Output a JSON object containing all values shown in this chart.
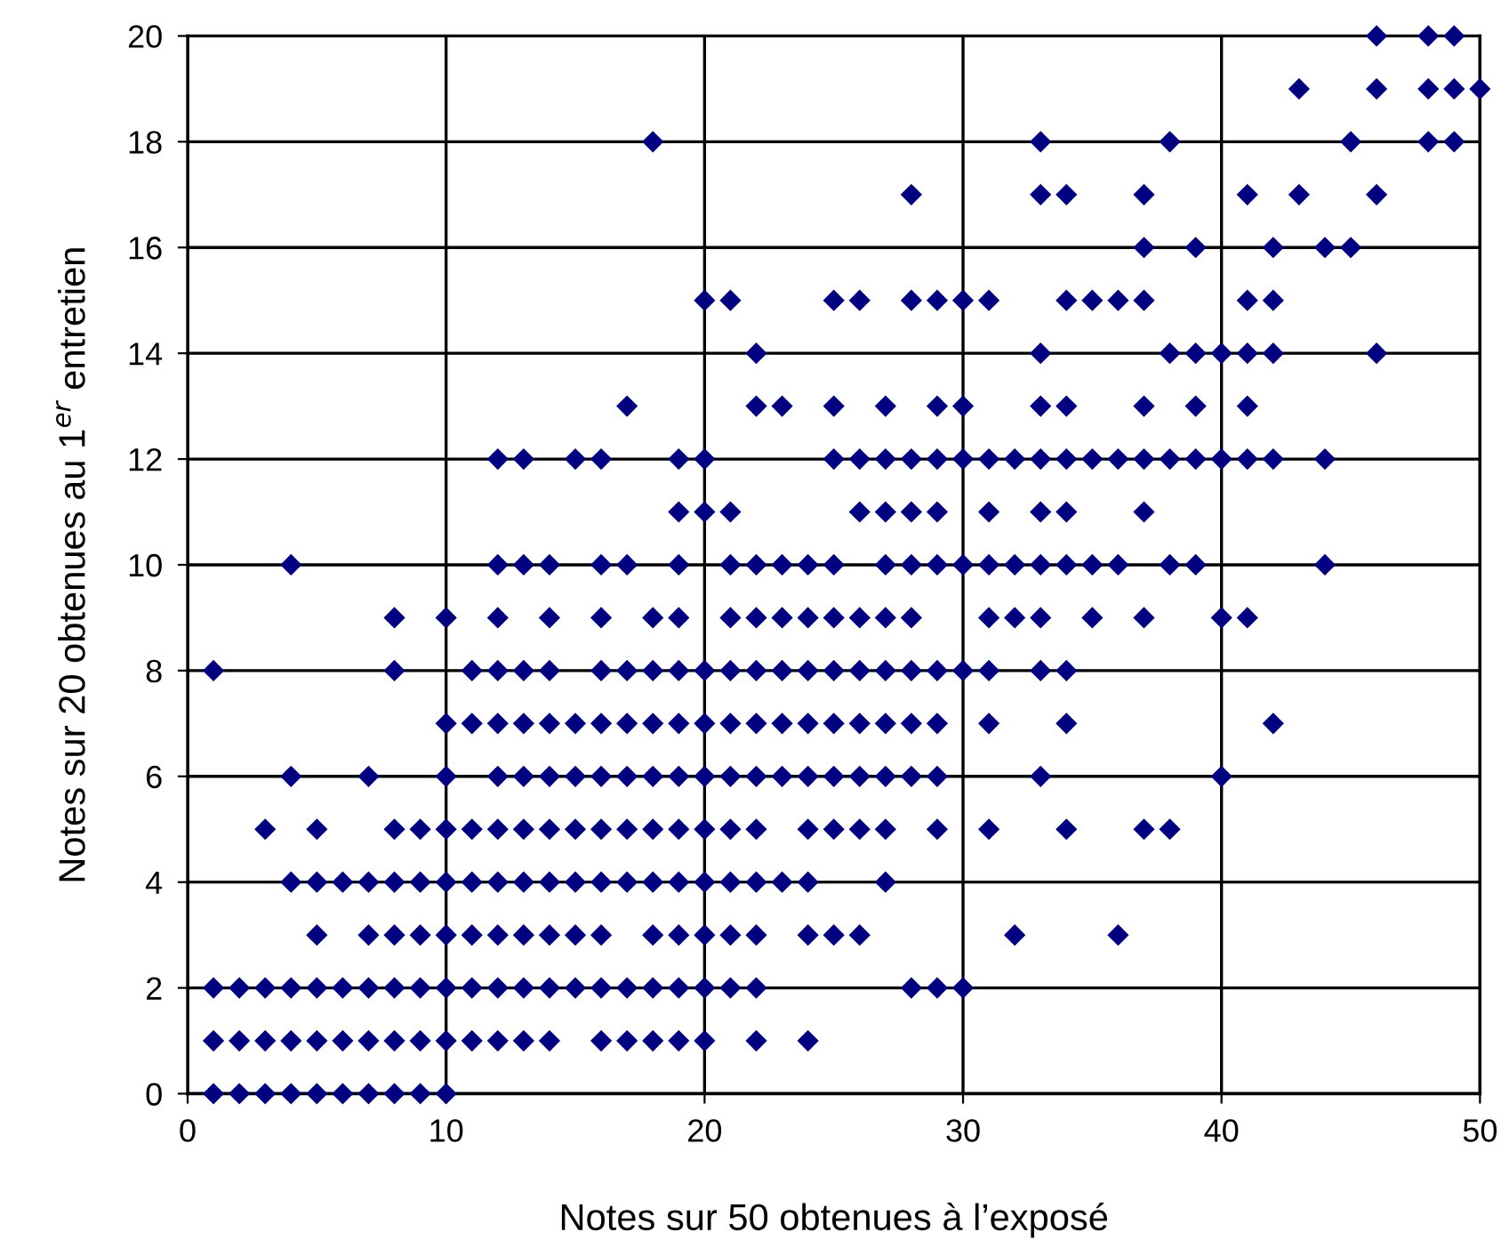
{
  "chart_data": {
    "type": "scatter",
    "xlabel": "Notes sur 50 obtenues à l’exposé",
    "ylabel": "Notes sur 20 obtenues au 1$^{er}$ entretien",
    "xlim": [
      0,
      50
    ],
    "ylim": [
      0,
      20
    ],
    "xticks": [
      0,
      10,
      20,
      30,
      40,
      50
    ],
    "yticks": [
      0,
      2,
      4,
      6,
      8,
      10,
      12,
      14,
      16,
      18,
      20
    ],
    "grid": true,
    "marker": "diamond",
    "series": [
      {
        "color": "#000080",
        "x": [
          1,
          2,
          3,
          4,
          5,
          6,
          7,
          8,
          9,
          10,
          1,
          2,
          3,
          4,
          5,
          6,
          7,
          8,
          9,
          10,
          11,
          12,
          13,
          14,
          16,
          17,
          18,
          19,
          20,
          22,
          24,
          1,
          2,
          3,
          4,
          5,
          6,
          7,
          8,
          9,
          10,
          11,
          12,
          13,
          14,
          15,
          16,
          17,
          18,
          19,
          20,
          21,
          22,
          28,
          29,
          30,
          5,
          7,
          8,
          9,
          10,
          11,
          12,
          13,
          14,
          15,
          16,
          18,
          19,
          20,
          21,
          22,
          24,
          25,
          26,
          32,
          36,
          4,
          5,
          6,
          7,
          8,
          9,
          10,
          11,
          12,
          13,
          14,
          15,
          16,
          17,
          18,
          19,
          20,
          21,
          22,
          23,
          24,
          27,
          3,
          5,
          8,
          9,
          10,
          11,
          12,
          13,
          14,
          15,
          16,
          17,
          18,
          19,
          20,
          21,
          22,
          24,
          25,
          26,
          27,
          29,
          31,
          34,
          37,
          38,
          4,
          7,
          10,
          12,
          13,
          14,
          15,
          16,
          17,
          18,
          19,
          20,
          21,
          22,
          23,
          24,
          25,
          26,
          27,
          28,
          29,
          33,
          40,
          10,
          11,
          12,
          13,
          14,
          15,
          16,
          17,
          18,
          19,
          20,
          21,
          22,
          23,
          24,
          25,
          26,
          27,
          28,
          29,
          31,
          34,
          42,
          1,
          8,
          11,
          12,
          13,
          14,
          16,
          17,
          18,
          19,
          20,
          21,
          22,
          23,
          24,
          25,
          26,
          27,
          28,
          29,
          30,
          31,
          33,
          34,
          8,
          10,
          12,
          14,
          16,
          18,
          19,
          21,
          22,
          23,
          24,
          25,
          26,
          27,
          28,
          31,
          32,
          33,
          35,
          37,
          40,
          41,
          4,
          12,
          13,
          14,
          16,
          17,
          19,
          21,
          22,
          23,
          24,
          25,
          27,
          28,
          29,
          30,
          31,
          32,
          33,
          34,
          35,
          36,
          38,
          39,
          44,
          19,
          20,
          21,
          26,
          27,
          28,
          29,
          31,
          33,
          34,
          37,
          12,
          13,
          15,
          16,
          19,
          20,
          25,
          26,
          27,
          28,
          29,
          30,
          31,
          32,
          33,
          34,
          35,
          36,
          37,
          38,
          39,
          40,
          41,
          42,
          44,
          17,
          22,
          23,
          25,
          27,
          29,
          30,
          33,
          34,
          37,
          39,
          41,
          22,
          33,
          38,
          39,
          40,
          41,
          42,
          46,
          20,
          21,
          25,
          26,
          28,
          29,
          30,
          31,
          34,
          35,
          36,
          37,
          41,
          42,
          37,
          39,
          42,
          44,
          45,
          28,
          33,
          34,
          37,
          41,
          43,
          46,
          18,
          33,
          38,
          45,
          48,
          49,
          43,
          46,
          48,
          49,
          50,
          46,
          48,
          49
        ],
        "values": [
          0,
          0,
          0,
          0,
          0,
          0,
          0,
          0,
          0,
          0,
          1,
          1,
          1,
          1,
          1,
          1,
          1,
          1,
          1,
          1,
          1,
          1,
          1,
          1,
          1,
          1,
          1,
          1,
          1,
          1,
          1,
          2,
          2,
          2,
          2,
          2,
          2,
          2,
          2,
          2,
          2,
          2,
          2,
          2,
          2,
          2,
          2,
          2,
          2,
          2,
          2,
          2,
          2,
          2,
          2,
          2,
          3,
          3,
          3,
          3,
          3,
          3,
          3,
          3,
          3,
          3,
          3,
          3,
          3,
          3,
          3,
          3,
          3,
          3,
          3,
          3,
          3,
          4,
          4,
          4,
          4,
          4,
          4,
          4,
          4,
          4,
          4,
          4,
          4,
          4,
          4,
          4,
          4,
          4,
          4,
          4,
          4,
          4,
          4,
          5,
          5,
          5,
          5,
          5,
          5,
          5,
          5,
          5,
          5,
          5,
          5,
          5,
          5,
          5,
          5,
          5,
          5,
          5,
          5,
          5,
          5,
          5,
          5,
          5,
          5,
          6,
          6,
          6,
          6,
          6,
          6,
          6,
          6,
          6,
          6,
          6,
          6,
          6,
          6,
          6,
          6,
          6,
          6,
          6,
          6,
          6,
          6,
          6,
          7,
          7,
          7,
          7,
          7,
          7,
          7,
          7,
          7,
          7,
          7,
          7,
          7,
          7,
          7,
          7,
          7,
          7,
          7,
          7,
          7,
          7,
          7,
          8,
          8,
          8,
          8,
          8,
          8,
          8,
          8,
          8,
          8,
          8,
          8,
          8,
          8,
          8,
          8,
          8,
          8,
          8,
          8,
          8,
          8,
          8,
          8,
          9,
          9,
          9,
          9,
          9,
          9,
          9,
          9,
          9,
          9,
          9,
          9,
          9,
          9,
          9,
          9,
          9,
          9,
          9,
          9,
          9,
          9,
          10,
          10,
          10,
          10,
          10,
          10,
          10,
          10,
          10,
          10,
          10,
          10,
          10,
          10,
          10,
          10,
          10,
          10,
          10,
          10,
          10,
          10,
          10,
          10,
          10,
          11,
          11,
          11,
          11,
          11,
          11,
          11,
          11,
          11,
          11,
          11,
          12,
          12,
          12,
          12,
          12,
          12,
          12,
          12,
          12,
          12,
          12,
          12,
          12,
          12,
          12,
          12,
          12,
          12,
          12,
          12,
          12,
          12,
          12,
          12,
          12,
          13,
          13,
          13,
          13,
          13,
          13,
          13,
          13,
          13,
          13,
          13,
          13,
          14,
          14,
          14,
          14,
          14,
          14,
          14,
          14,
          15,
          15,
          15,
          15,
          15,
          15,
          15,
          15,
          15,
          15,
          15,
          15,
          15,
          15,
          16,
          16,
          16,
          16,
          16,
          17,
          17,
          17,
          17,
          17,
          17,
          17,
          18,
          18,
          18,
          18,
          18,
          18,
          19,
          19,
          19,
          19,
          19,
          20,
          20,
          20
        ]
      }
    ]
  }
}
